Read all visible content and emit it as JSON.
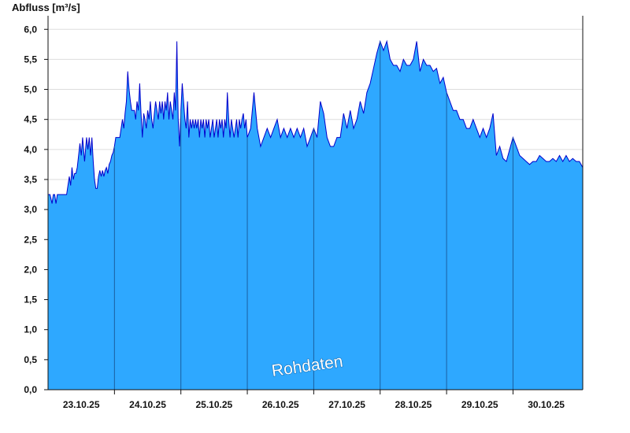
{
  "chart_data": {
    "type": "area",
    "ylabel": "Abfluss [m³/s]",
    "ylim": [
      0,
      6.2
    ],
    "yticks": [
      "0,0",
      "0,5",
      "1,0",
      "1,5",
      "2,0",
      "2,5",
      "3,0",
      "3,5",
      "4,0",
      "4,5",
      "5,0",
      "5,5",
      "6,0"
    ],
    "xlabels": [
      "23.10.25",
      "24.10.25",
      "25.10.25",
      "26.10.25",
      "27.10.25",
      "28.10.25",
      "29.10.25",
      "30.10.25"
    ],
    "xlim": [
      "23.10.25 00:00",
      "30.10.25 24:00"
    ],
    "grid": true,
    "watermark": "Rohdaten",
    "colors": {
      "fill": "#2ea8ff",
      "line": "#0000cc",
      "grid": "#dddddd",
      "axis": "#111111"
    },
    "series": [
      {
        "x": [
          0,
          0.03,
          0.06,
          0.08,
          0.1,
          0.12,
          0.14,
          0.16,
          0.18,
          0.2,
          0.22,
          0.24,
          0.26,
          0.28,
          0.3,
          0.32,
          0.34,
          0.36,
          0.38,
          0.4,
          0.42,
          0.44,
          0.46,
          0.48,
          0.5,
          0.52,
          0.55,
          0.58,
          0.6,
          0.62,
          0.64,
          0.66,
          0.68,
          0.7,
          0.72,
          0.74,
          0.76,
          0.78,
          0.8,
          0.82,
          0.84,
          0.86,
          0.88,
          0.9,
          0.92,
          0.94,
          0.96,
          0.98,
          1.0,
          1.02,
          1.04,
          1.06,
          1.08,
          1.1,
          1.12,
          1.14,
          1.16,
          1.18,
          1.2,
          1.22,
          1.24,
          1.26,
          1.28,
          1.3,
          1.32,
          1.34,
          1.36,
          1.38,
          1.4,
          1.42,
          1.44,
          1.46,
          1.48,
          1.5,
          1.52,
          1.54,
          1.56,
          1.58,
          1.6,
          1.62,
          1.64,
          1.66,
          1.68,
          1.7,
          1.72,
          1.74,
          1.76,
          1.78,
          1.8,
          1.82,
          1.84,
          1.86,
          1.88,
          1.9,
          1.92,
          1.94,
          1.96,
          1.98,
          2.0,
          2.02,
          2.04,
          2.06,
          2.08,
          2.1,
          2.12,
          2.14,
          2.16,
          2.18,
          2.2,
          2.22,
          2.24,
          2.26,
          2.28,
          2.3,
          2.32,
          2.34,
          2.36,
          2.38,
          2.4,
          2.42,
          2.44,
          2.46,
          2.48,
          2.5,
          2.52,
          2.54,
          2.56,
          2.58,
          2.6,
          2.62,
          2.64,
          2.66,
          2.68,
          2.7,
          2.72,
          2.74,
          2.76,
          2.78,
          2.8,
          2.82,
          2.84,
          2.86,
          2.88,
          2.9,
          2.92,
          2.94,
          2.96,
          2.98,
          3.0,
          3.05,
          3.1,
          3.15,
          3.2,
          3.25,
          3.3,
          3.35,
          3.4,
          3.45,
          3.5,
          3.55,
          3.6,
          3.65,
          3.7,
          3.75,
          3.8,
          3.85,
          3.9,
          3.95,
          4.0,
          4.05,
          4.1,
          4.15,
          4.2,
          4.25,
          4.3,
          4.35,
          4.4,
          4.45,
          4.5,
          4.55,
          4.6,
          4.65,
          4.7,
          4.75,
          4.8,
          4.85,
          4.9,
          4.95,
          5.0,
          5.05,
          5.1,
          5.15,
          5.2,
          5.25,
          5.3,
          5.35,
          5.4,
          5.45,
          5.5,
          5.55,
          5.6,
          5.65,
          5.7,
          5.75,
          5.8,
          5.85,
          5.9,
          5.95,
          6.0,
          6.05,
          6.1,
          6.15,
          6.2,
          6.25,
          6.3,
          6.35,
          6.4,
          6.45,
          6.5,
          6.55,
          6.6,
          6.65,
          6.7,
          6.75,
          6.8,
          6.85,
          6.9,
          6.95,
          7.0,
          7.05,
          7.1,
          7.15,
          7.2,
          7.25,
          7.3,
          7.35,
          7.4,
          7.45,
          7.5,
          7.55,
          7.6,
          7.65,
          7.7,
          7.75,
          7.8,
          7.85,
          7.9,
          7.95,
          8.0,
          8.05
        ],
        "y": [
          3.25,
          3.25,
          3.1,
          3.25,
          3.25,
          3.1,
          3.25,
          3.25,
          3.25,
          3.25,
          3.25,
          3.25,
          3.25,
          3.25,
          3.4,
          3.55,
          3.4,
          3.7,
          3.5,
          3.6,
          3.6,
          3.7,
          3.9,
          4.1,
          3.9,
          4.2,
          3.8,
          4.2,
          4.0,
          4.2,
          3.9,
          4.2,
          3.8,
          3.5,
          3.35,
          3.35,
          3.55,
          3.65,
          3.55,
          3.65,
          3.55,
          3.65,
          3.7,
          3.6,
          3.75,
          3.8,
          3.9,
          3.95,
          4.05,
          4.2,
          4.2,
          4.2,
          4.2,
          4.35,
          4.5,
          4.35,
          4.6,
          4.8,
          5.3,
          5.0,
          4.8,
          4.65,
          4.65,
          4.65,
          4.5,
          4.8,
          4.65,
          5.1,
          4.6,
          4.2,
          4.6,
          4.5,
          4.35,
          4.65,
          4.5,
          4.8,
          4.5,
          4.35,
          4.6,
          4.8,
          4.65,
          4.5,
          4.8,
          4.6,
          4.8,
          4.5,
          4.8,
          4.65,
          4.95,
          4.5,
          4.8,
          4.65,
          4.5,
          4.95,
          4.65,
          5.8,
          4.5,
          4.05,
          4.65,
          5.1,
          4.8,
          4.5,
          4.35,
          4.8,
          4.2,
          4.5,
          4.35,
          4.5,
          4.35,
          4.5,
          4.35,
          4.5,
          4.2,
          4.5,
          4.35,
          4.5,
          4.2,
          4.5,
          4.35,
          4.5,
          4.2,
          4.35,
          4.5,
          4.2,
          4.35,
          4.5,
          4.2,
          4.5,
          4.35,
          4.5,
          4.2,
          4.5,
          4.35,
          4.95,
          4.5,
          4.2,
          4.5,
          4.35,
          4.2,
          4.35,
          4.5,
          4.2,
          4.5,
          4.35,
          4.5,
          4.6,
          4.35,
          4.5,
          4.2,
          4.35,
          4.95,
          4.35,
          4.05,
          4.2,
          4.35,
          4.2,
          4.35,
          4.5,
          4.2,
          4.35,
          4.2,
          4.35,
          4.2,
          4.35,
          4.2,
          4.35,
          4.05,
          4.2,
          4.35,
          4.2,
          4.8,
          4.6,
          4.2,
          4.05,
          4.05,
          4.2,
          4.2,
          4.6,
          4.35,
          4.65,
          4.35,
          4.5,
          4.8,
          4.6,
          4.95,
          5.1,
          5.35,
          5.6,
          5.8,
          5.65,
          5.8,
          5.5,
          5.4,
          5.4,
          5.3,
          5.5,
          5.4,
          5.4,
          5.5,
          5.8,
          5.3,
          5.5,
          5.4,
          5.4,
          5.3,
          5.35,
          5.1,
          5.2,
          4.95,
          4.8,
          4.65,
          4.65,
          4.5,
          4.5,
          4.35,
          4.35,
          4.5,
          4.35,
          4.2,
          4.35,
          4.2,
          4.35,
          4.6,
          3.9,
          4.05,
          3.85,
          3.8,
          4.0,
          4.2,
          4.05,
          3.9,
          3.85,
          3.8,
          3.75,
          3.8,
          3.8,
          3.9,
          3.85,
          3.8,
          3.8,
          3.85,
          3.8,
          3.9,
          3.8,
          3.9,
          3.8,
          3.85,
          3.8,
          3.8,
          3.7
        ]
      }
    ]
  }
}
